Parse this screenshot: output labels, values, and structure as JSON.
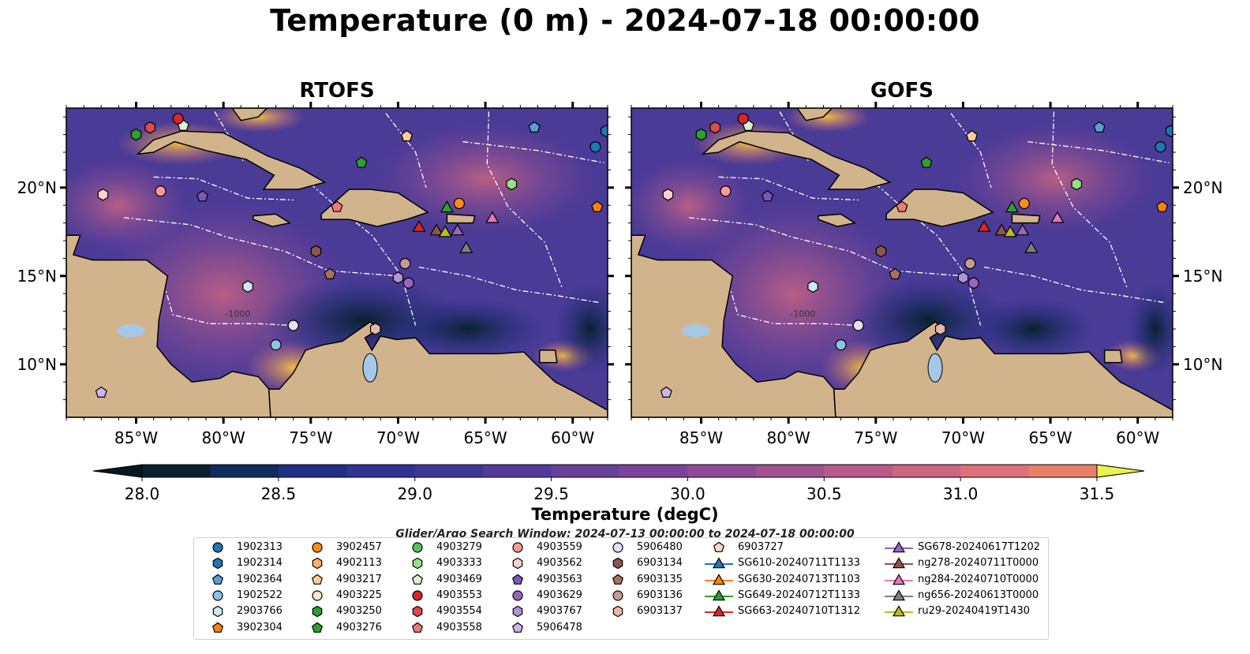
{
  "title": "Temperature (0 m) - 2024-07-18 00:00:00",
  "panels": [
    {
      "title": "RTOFS"
    },
    {
      "title": "GOFS"
    }
  ],
  "axes": {
    "lon_labels": [
      "85°W",
      "80°W",
      "75°W",
      "70°W",
      "65°W",
      "60°W"
    ],
    "lat_labels": [
      "20°N",
      "15°N",
      "10°N"
    ],
    "lon_range": [
      -89,
      -58
    ],
    "lat_range": [
      7,
      24.5
    ]
  },
  "map_annotation": "-1000",
  "colorbar": {
    "label": "Temperature (degC)",
    "min": 28.0,
    "max": 31.5,
    "step": 0.25,
    "tick_labels": [
      "28.0",
      "28.5",
      "29.0",
      "29.5",
      "30.0",
      "30.5",
      "31.0",
      "31.5"
    ],
    "colors": [
      "#08222f",
      "#0f2d5e",
      "#1f2f86",
      "#2f3493",
      "#3f3798",
      "#523b9a",
      "#66409b",
      "#7a4599",
      "#8f4b96",
      "#a45191",
      "#b85a8a",
      "#cb6582",
      "#dd7177",
      "#ea7f69",
      "#f28c5a",
      "#f69b4e",
      "#f7ad45",
      "#f3c242",
      "#ecd747"
    ],
    "extend_low_color": "#061820",
    "extend_high_color": "#e8f34c"
  },
  "search_window": "Glider/Argo Search Window: 2024-07-13 00:00:00 to 2024-07-18 00:00:00",
  "legend": {
    "columns": [
      [
        {
          "label": "1902313",
          "marker": "circle",
          "color": "#1f77b4"
        },
        {
          "label": "1902314",
          "marker": "hexagon",
          "color": "#1f77b4"
        },
        {
          "label": "1902364",
          "marker": "pentagon",
          "color": "#5a9fd6"
        },
        {
          "label": "1902522",
          "marker": "circle",
          "color": "#8ec1e8"
        },
        {
          "label": "2903766",
          "marker": "hexagon",
          "color": "#cfe8f7"
        },
        {
          "label": "3902304",
          "marker": "pentagon",
          "color": "#ff7f0e"
        }
      ],
      [
        {
          "label": "3902457",
          "marker": "circle",
          "color": "#ff8c1a"
        },
        {
          "label": "4902113",
          "marker": "hexagon",
          "color": "#ffb066"
        },
        {
          "label": "4903217",
          "marker": "pentagon",
          "color": "#ffcc99"
        },
        {
          "label": "4903225",
          "marker": "circle",
          "color": "#ffe6cc"
        },
        {
          "label": "4903250",
          "marker": "hexagon",
          "color": "#2ca02c"
        },
        {
          "label": "4903276",
          "marker": "pentagon",
          "color": "#2ca02c"
        }
      ],
      [
        {
          "label": "4903279",
          "marker": "circle",
          "color": "#5cbf5c"
        },
        {
          "label": "4903333",
          "marker": "hexagon",
          "color": "#98df8a"
        },
        {
          "label": "4903469",
          "marker": "pentagon",
          "color": "#d9f5d0"
        },
        {
          "label": "4903553",
          "marker": "circle",
          "color": "#d62728"
        },
        {
          "label": "4903554",
          "marker": "hexagon",
          "color": "#e04a4a"
        },
        {
          "label": "4903558",
          "marker": "pentagon",
          "color": "#f07878"
        }
      ],
      [
        {
          "label": "4903559",
          "marker": "circle",
          "color": "#ff9896"
        },
        {
          "label": "4903562",
          "marker": "hexagon",
          "color": "#ffcfcf"
        },
        {
          "label": "4903563",
          "marker": "pentagon",
          "color": "#7d56b8"
        },
        {
          "label": "4903629",
          "marker": "circle",
          "color": "#9467bd"
        },
        {
          "label": "4903767",
          "marker": "hexagon",
          "color": "#b093d6"
        },
        {
          "label": "5906478",
          "marker": "pentagon",
          "color": "#cdb5ea"
        }
      ],
      [
        {
          "label": "5906480",
          "marker": "circle",
          "color": "#e8dcf7"
        },
        {
          "label": "6903134",
          "marker": "hexagon",
          "color": "#8c564b"
        },
        {
          "label": "6903135",
          "marker": "pentagon",
          "color": "#a7705f"
        },
        {
          "label": "6903136",
          "marker": "circle",
          "color": "#c49c94"
        },
        {
          "label": "6903137",
          "marker": "hexagon",
          "color": "#e7b8a8"
        }
      ],
      [
        {
          "label": "6903727",
          "marker": "pentagon",
          "color": "#f7d6cc"
        },
        {
          "label": "SG610-20240711T1133",
          "marker": "triangle",
          "color": "#1f77b4"
        },
        {
          "label": "SG630-20240713T1103",
          "marker": "triangle",
          "color": "#ff7f0e"
        },
        {
          "label": "SG649-20240712T1133",
          "marker": "triangle",
          "color": "#2ca02c"
        },
        {
          "label": "SG663-20240710T1312",
          "marker": "triangle",
          "color": "#d62728"
        }
      ],
      [
        {
          "label": "SG678-20240617T1202",
          "marker": "triangle",
          "color": "#9467bd"
        },
        {
          "label": "ng278-20240711T0000",
          "marker": "triangle",
          "color": "#8c564b"
        },
        {
          "label": "ng284-20240710T0000",
          "marker": "triangle",
          "color": "#e377c2"
        },
        {
          "label": "ng656-20240613T0000",
          "marker": "triangle",
          "color": "#7f7f7f"
        },
        {
          "label": "ru29-20240419T1430",
          "marker": "triangle",
          "color": "#bcbd22"
        }
      ]
    ]
  },
  "map_markers": [
    {
      "id": "1902313",
      "lon": -58.7,
      "lat": 22.3
    },
    {
      "id": "1902314",
      "lon": -58.1,
      "lat": 23.2
    },
    {
      "id": "1902364",
      "lon": -62.2,
      "lat": 23.4
    },
    {
      "id": "1902522",
      "lon": -77.0,
      "lat": 11.1
    },
    {
      "id": "2903766",
      "lon": -78.6,
      "lat": 14.4
    },
    {
      "id": "3902304",
      "lon": -58.6,
      "lat": 18.9
    },
    {
      "id": "3902457",
      "lon": -66.5,
      "lat": 19.1
    },
    {
      "id": "4903217",
      "lon": -69.5,
      "lat": 22.9
    },
    {
      "id": "4903250",
      "lon": -85.0,
      "lat": 23.0
    },
    {
      "id": "4903276",
      "lon": -72.1,
      "lat": 21.4
    },
    {
      "id": "4903333",
      "lon": -63.5,
      "lat": 20.2
    },
    {
      "id": "4903469",
      "lon": -82.3,
      "lat": 23.5
    },
    {
      "id": "4903553",
      "lon": -82.6,
      "lat": 23.9
    },
    {
      "id": "4903554",
      "lon": -84.2,
      "lat": 23.4
    },
    {
      "id": "4903558",
      "lon": -73.5,
      "lat": 18.9
    },
    {
      "id": "4903559",
      "lon": -83.6,
      "lat": 19.8
    },
    {
      "id": "4903562",
      "lon": -86.9,
      "lat": 19.6
    },
    {
      "id": "4903563",
      "lon": -81.2,
      "lat": 19.5
    },
    {
      "id": "4903629",
      "lon": -69.4,
      "lat": 14.6
    },
    {
      "id": "4903767",
      "lon": -70.0,
      "lat": 14.9
    },
    {
      "id": "5906478",
      "lon": -87.0,
      "lat": 8.4
    },
    {
      "id": "5906480",
      "lon": -76.0,
      "lat": 12.2
    },
    {
      "id": "6903134",
      "lon": -74.7,
      "lat": 16.4
    },
    {
      "id": "6903135",
      "lon": -73.9,
      "lat": 15.1
    },
    {
      "id": "6903136",
      "lon": -69.6,
      "lat": 15.7
    },
    {
      "id": "6903137",
      "lon": -71.3,
      "lat": 12.0
    },
    {
      "id": "SG649",
      "lon": -67.2,
      "lat": 18.9
    },
    {
      "id": "SG663",
      "lon": -68.8,
      "lat": 17.8
    },
    {
      "id": "ng278",
      "lon": -67.8,
      "lat": 17.6
    },
    {
      "id": "ru29",
      "lon": -67.3,
      "lat": 17.5
    },
    {
      "id": "SG678",
      "lon": -66.6,
      "lat": 17.6
    },
    {
      "id": "ng284",
      "lon": -64.6,
      "lat": 18.3
    },
    {
      "id": "ng656",
      "lon": -66.1,
      "lat": 16.6
    }
  ]
}
